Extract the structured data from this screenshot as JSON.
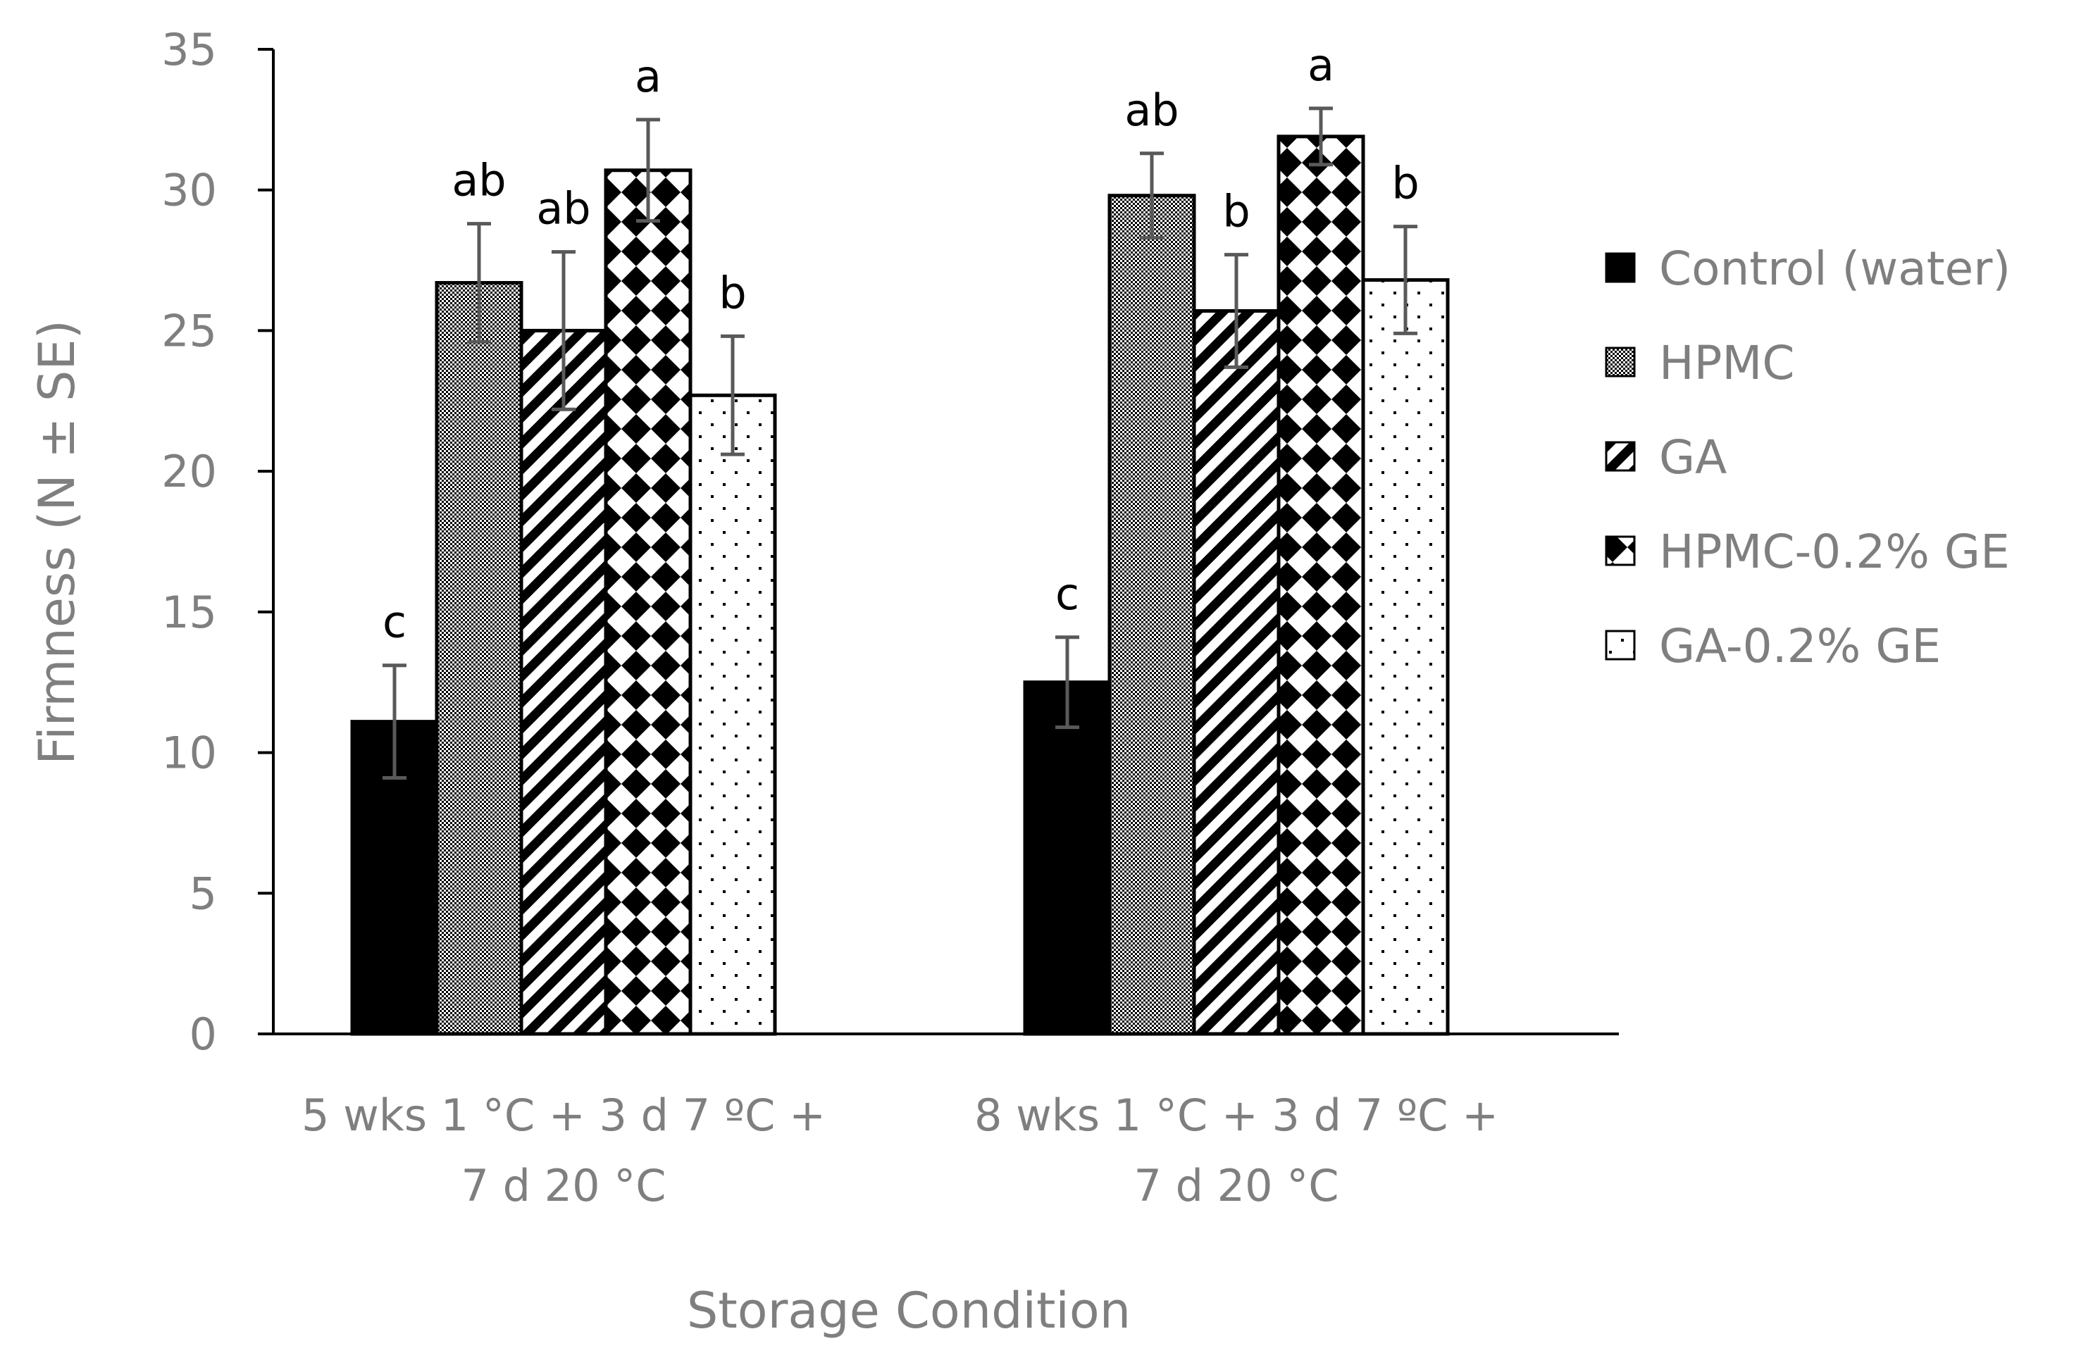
{
  "chart_data": {
    "type": "bar",
    "title": "",
    "xlabel": "Storage Condition",
    "ylabel": "Firmness (N ± SE)",
    "ylim": [
      0,
      35
    ],
    "yticks": [
      0,
      5,
      10,
      15,
      20,
      25,
      30,
      35
    ],
    "grid": false,
    "legend_position": "right",
    "categories": [
      [
        "5 wks 1 °C + 3 d 7 ºC +",
        "7 d 20 °C"
      ],
      [
        "8 wks 1 °C + 3 d 7 ºC +",
        "7 d 20 °C"
      ]
    ],
    "series": [
      {
        "name": "Control (water)",
        "pattern": "solid",
        "values": [
          11.1,
          12.5
        ],
        "errors": [
          2.0,
          1.6
        ],
        "letters": [
          "c",
          "c"
        ]
      },
      {
        "name": "HPMC",
        "pattern": "checker",
        "values": [
          26.7,
          29.8
        ],
        "errors": [
          2.1,
          1.5
        ],
        "letters": [
          "ab",
          "ab"
        ]
      },
      {
        "name": "GA",
        "pattern": "diagonal",
        "values": [
          25.0,
          25.7
        ],
        "errors": [
          2.8,
          2.0
        ],
        "letters": [
          "ab",
          "b"
        ]
      },
      {
        "name": "HPMC-0.2% GE",
        "pattern": "diamond",
        "values": [
          30.7,
          31.9
        ],
        "errors": [
          1.8,
          1.0
        ],
        "letters": [
          "a",
          "a"
        ]
      },
      {
        "name": "GA-0.2% GE",
        "pattern": "dots",
        "values": [
          22.7,
          26.8
        ],
        "errors": [
          2.1,
          1.9
        ],
        "letters": [
          "b",
          "b"
        ]
      }
    ],
    "colors": {
      "axis": "#000000",
      "text": "#7f7f7f",
      "error_bar": "#595959",
      "bar_fill": "#000000",
      "bar_bg": "#ffffff"
    }
  }
}
